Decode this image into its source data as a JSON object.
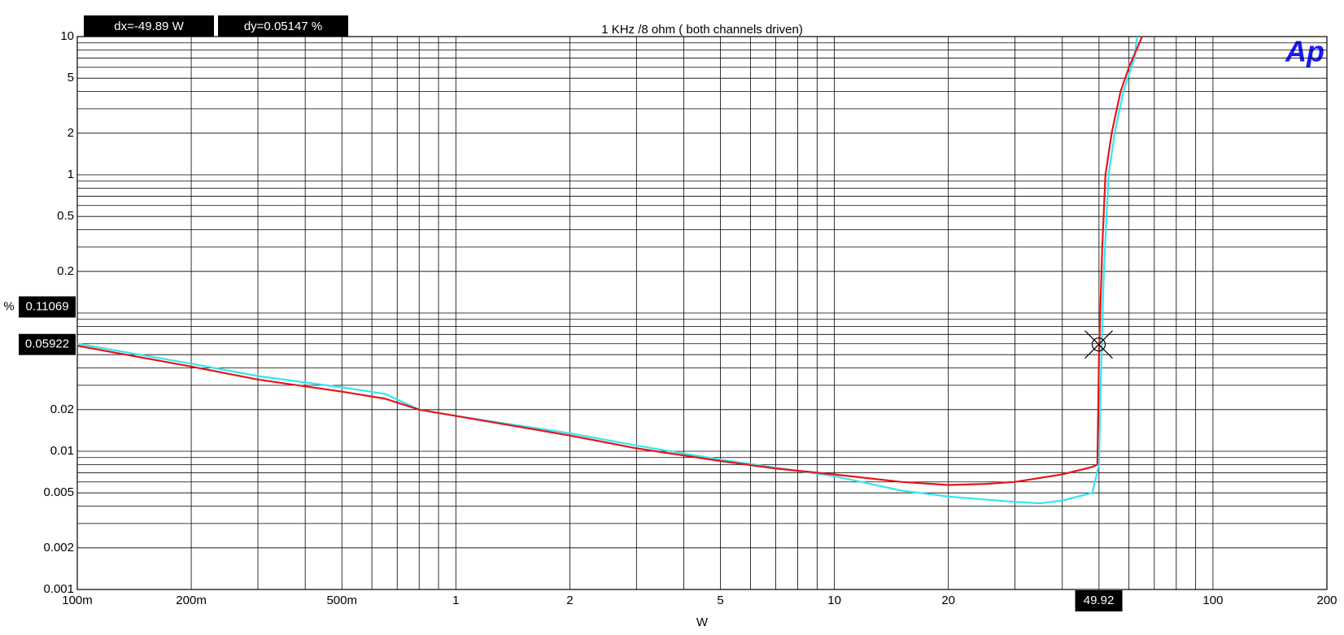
{
  "chart_data": {
    "type": "line",
    "title": "1 KHz /8 ohm ( both channels driven)",
    "xlabel": "W",
    "ylabel": "%",
    "log_x": true,
    "log_y": true,
    "grid": true,
    "xlim": [
      0.1,
      200
    ],
    "ylim": [
      0.001,
      10
    ],
    "xticks": [
      {
        "value": 0.1,
        "label": "100m"
      },
      {
        "value": 0.2,
        "label": "200m"
      },
      {
        "value": 0.5,
        "label": "500m"
      },
      1,
      2,
      5,
      10,
      20,
      100,
      200
    ],
    "x_minor_ticks": [
      0.3,
      0.4,
      0.6,
      0.7,
      0.8,
      0.9,
      3,
      4,
      6,
      7,
      8,
      9,
      30,
      40,
      50,
      60,
      70,
      80,
      90
    ],
    "yticks": [
      0.001,
      0.002,
      0.005,
      0.01,
      0.02,
      0.2,
      0.5,
      1,
      2,
      5,
      10
    ],
    "y_minor_ticks": [
      0.003,
      0.004,
      0.006,
      0.007,
      0.008,
      0.009,
      0.03,
      0.04,
      0.05,
      0.06,
      0.07,
      0.08,
      0.09,
      0.1,
      0.3,
      0.4,
      0.6,
      0.7,
      0.8,
      0.9,
      3,
      4,
      6,
      7,
      8,
      9
    ],
    "series": [
      {
        "color": "#32e6f0",
        "x": [
          0.1,
          0.2,
          0.3,
          0.5,
          0.65,
          0.8,
          1,
          2,
          3,
          5,
          7,
          10,
          15,
          20,
          30,
          35,
          40,
          48,
          50,
          50.5,
          51.5,
          53,
          55,
          58,
          62,
          63
        ],
        "values": [
          0.06,
          0.043,
          0.035,
          0.029,
          0.026,
          0.02,
          0.018,
          0.0135,
          0.011,
          0.0087,
          0.0076,
          0.0066,
          0.0052,
          0.0047,
          0.0043,
          0.0042,
          0.0044,
          0.005,
          0.008,
          0.03,
          0.2,
          1,
          2,
          4,
          7,
          10
        ]
      },
      {
        "color": "#e8141b",
        "x": [
          0.1,
          0.2,
          0.3,
          0.5,
          0.65,
          0.8,
          1,
          2,
          3,
          5,
          7,
          10,
          15,
          20,
          25,
          30,
          40,
          48,
          49.5,
          50,
          51,
          52,
          54,
          57,
          60,
          65
        ],
        "values": [
          0.058,
          0.041,
          0.033,
          0.027,
          0.024,
          0.02,
          0.018,
          0.013,
          0.0105,
          0.0085,
          0.0075,
          0.0068,
          0.006,
          0.0057,
          0.0058,
          0.006,
          0.0068,
          0.0077,
          0.008,
          0.05,
          0.3,
          1,
          2,
          4,
          6,
          10
        ]
      }
    ],
    "cursor": {
      "x": 49.92,
      "y1": 0.11069,
      "y2": 0.05922,
      "dx": "dx=-49.89  W",
      "dy": "dy=0.05147 %"
    },
    "logo": "Ap"
  }
}
